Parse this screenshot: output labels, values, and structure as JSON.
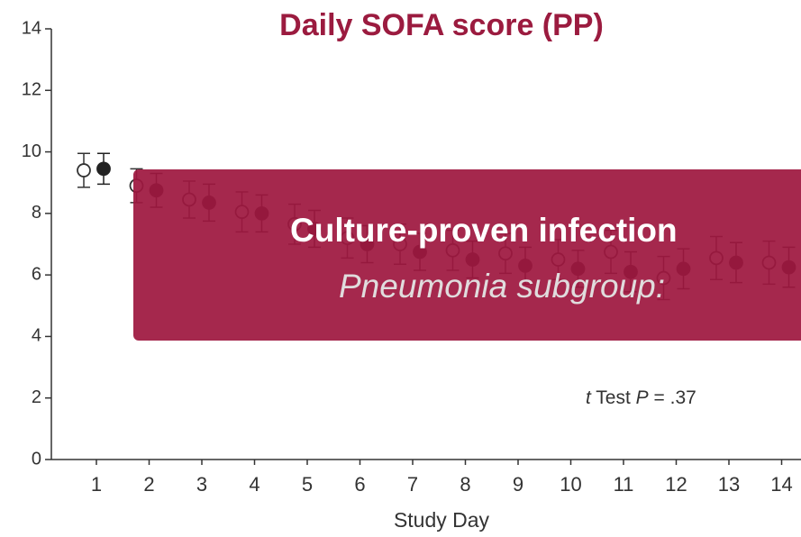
{
  "chart_data": {
    "type": "errorbar",
    "title": "Daily SOFA score (PP)",
    "x_label": "Study Day",
    "categories": [
      "1",
      "2",
      "3",
      "4",
      "5",
      "6",
      "7",
      "8",
      "9",
      "10",
      "11",
      "12",
      "13",
      "14"
    ],
    "series": [
      {
        "color": "#333333",
        "marker": "open",
        "values": [
          9.4,
          8.9,
          8.45,
          8.05,
          7.65,
          7.2,
          7.0,
          6.8,
          6.7,
          6.5,
          6.75,
          5.9,
          6.55,
          6.4
        ],
        "errors": [
          0.55,
          0.55,
          0.6,
          0.65,
          0.65,
          0.65,
          0.65,
          0.65,
          0.65,
          0.65,
          0.7,
          0.7,
          0.7,
          0.7
        ]
      },
      {
        "color": "#222222",
        "marker": "filled",
        "values": [
          9.45,
          8.75,
          8.35,
          8.0,
          7.5,
          7.0,
          6.75,
          6.5,
          6.3,
          6.2,
          6.1,
          6.2,
          6.4,
          6.25
        ],
        "errors": [
          0.5,
          0.55,
          0.6,
          0.6,
          0.6,
          0.6,
          0.6,
          0.6,
          0.6,
          0.6,
          0.65,
          0.65,
          0.65,
          0.65
        ]
      }
    ],
    "ylim": [
      0,
      14
    ],
    "yticks": [
      0,
      2,
      4,
      6,
      8,
      10,
      12,
      14
    ],
    "annotation": {
      "stat": "t",
      "test": " Test ",
      "p_label": "P",
      "p_text": " = .37"
    },
    "banner": {
      "title": "Culture-proven infection",
      "subtitle": "Pneumonia subgroup:"
    }
  }
}
